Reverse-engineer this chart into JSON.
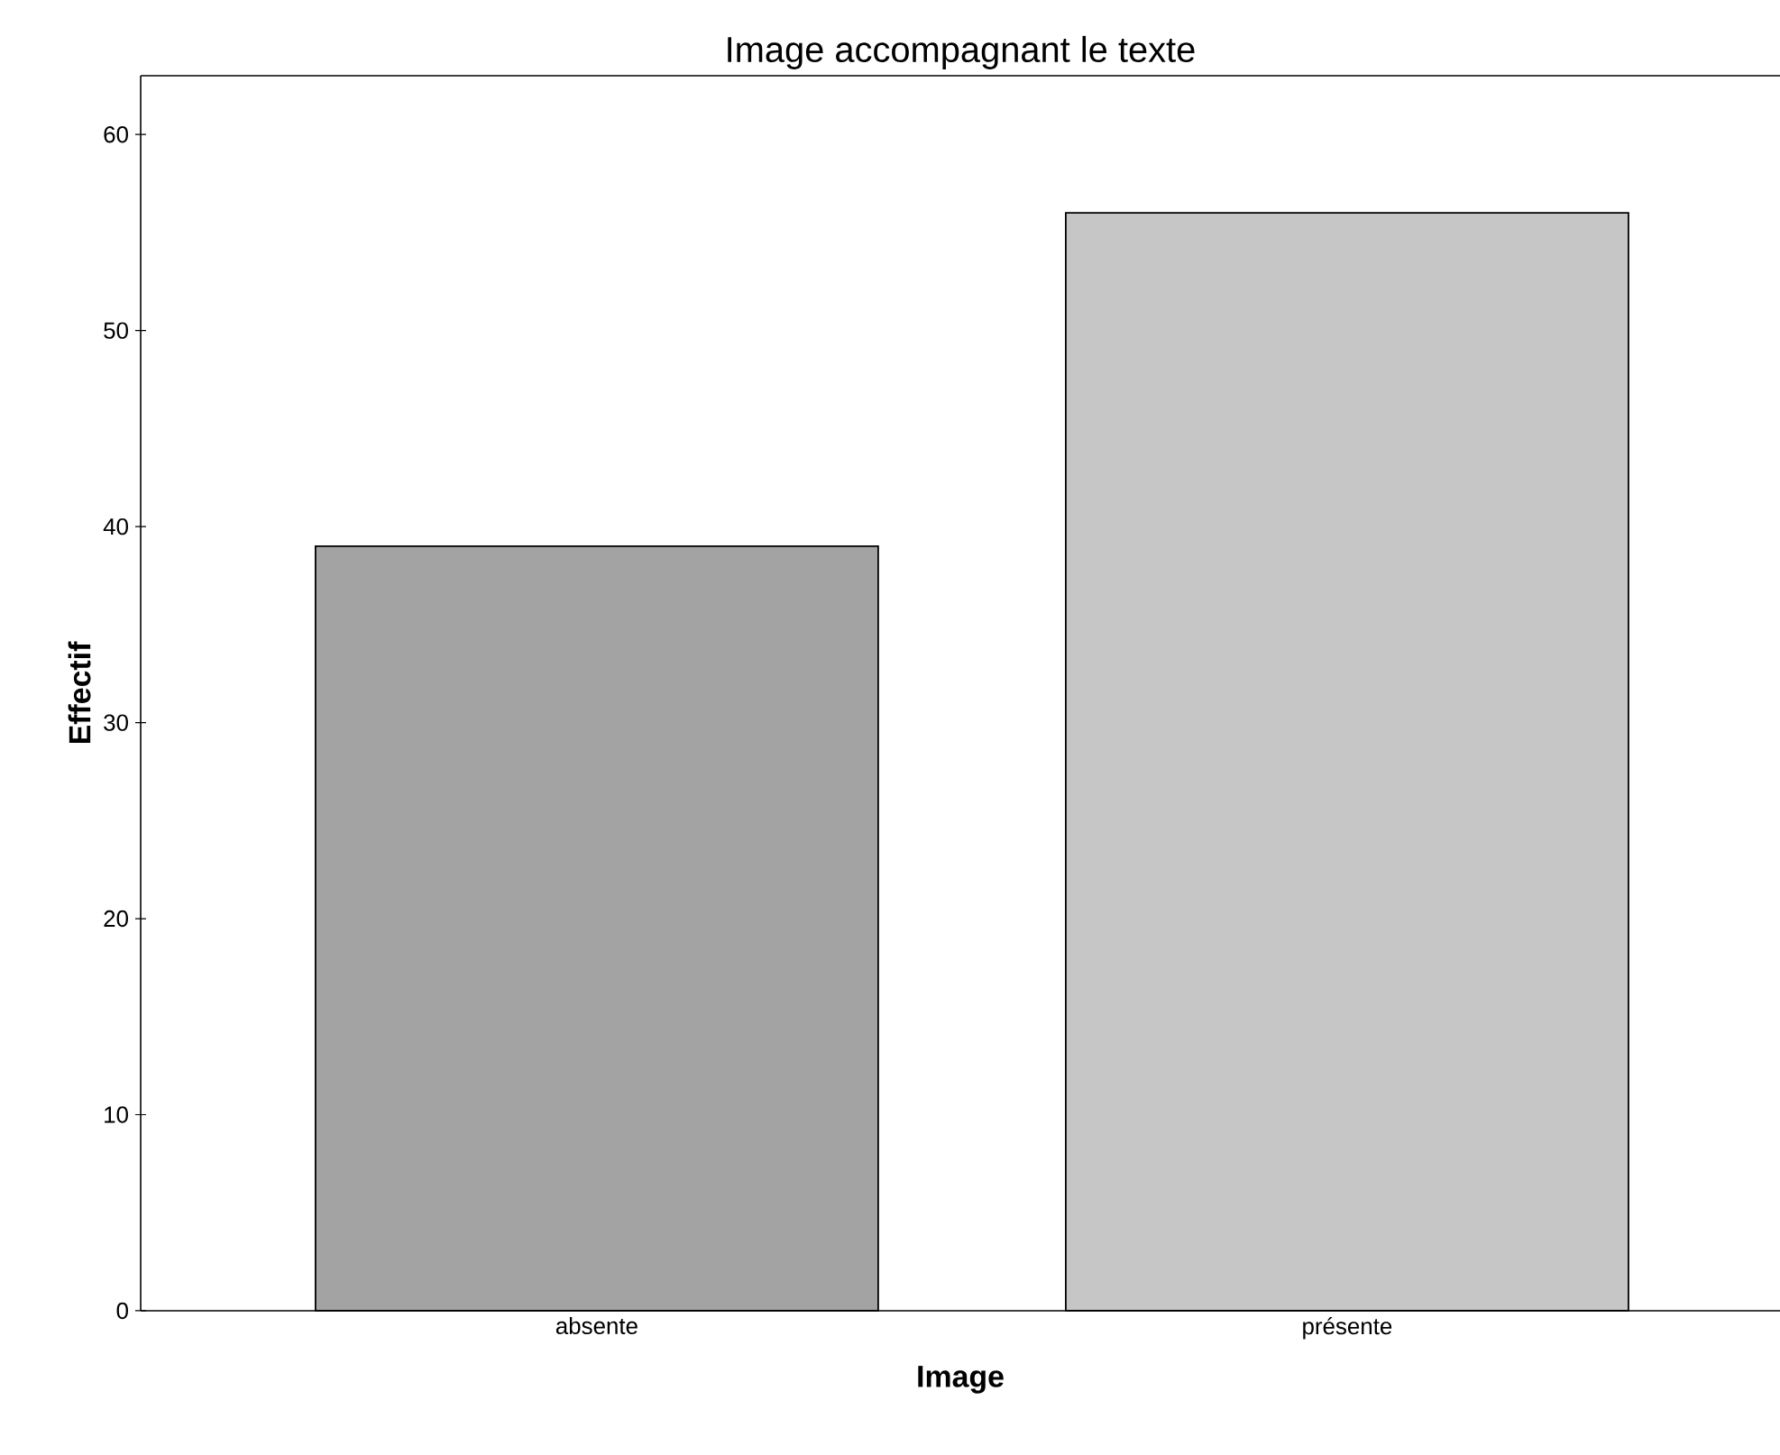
{
  "chart_data": {
    "type": "bar",
    "title": "Image accompagnant le texte",
    "xlabel": "Image",
    "ylabel": "Effectif",
    "categories": [
      "absente",
      "présente"
    ],
    "values": [
      39,
      56
    ],
    "colors": [
      "#a3a3a3",
      "#c6c6c6"
    ],
    "ylim": [
      0,
      63
    ],
    "yticks": [
      0,
      10,
      20,
      30,
      40,
      50,
      60
    ]
  }
}
